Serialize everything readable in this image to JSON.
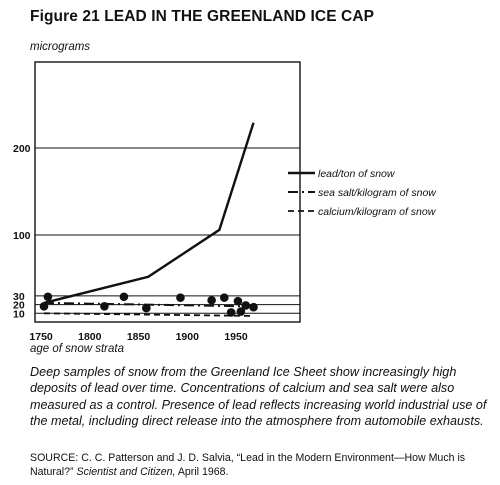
{
  "figure": {
    "title": "Figure 21 LEAD IN THE GREENLAND ICE CAP",
    "caption": "Deep samples of snow from the Greenland Ice Sheet show increasingly high deposits of lead over time. Concentrations of calcium and sea salt were also measured as a control. Presence of lead reflects increasing world industrial use of the metal, including direct release into the atmosphere from automobile exhausts.",
    "source_prefix": "SOURCE: C. C. Patterson and J. D. Salvia, “Lead in the Modern Environment—How Much is Natural?”",
    "source_journal": "Scientist and Citizen,",
    "source_suffix": "April 1968."
  },
  "chart_data": {
    "type": "line",
    "title": "",
    "xlabel": "age of snow strata",
    "ylabel": "micrograms",
    "xlim": [
      1735,
      1980
    ],
    "ylim": [
      0,
      275
    ],
    "x_ticks": [
      1750,
      1800,
      1850,
      1900,
      1950
    ],
    "y_ticks": [
      10,
      20,
      30,
      100,
      200
    ],
    "grid": true,
    "legend_position": "right",
    "series": [
      {
        "name": "lead/ton of snow",
        "style": "solid",
        "x": [
          1753,
          1860,
          1933,
          1968
        ],
        "y": [
          22,
          52,
          106,
          229
        ]
      },
      {
        "name": "sea salt/kilogram of snow",
        "style": "dash-dot",
        "x": [
          1753,
          1960
        ],
        "y": [
          22,
          18
        ]
      },
      {
        "name": "calcium/kilogram of snow",
        "style": "dashed",
        "x": [
          1753,
          1965
        ],
        "y": [
          10,
          7
        ]
      }
    ],
    "sample_points": {
      "x": [
        1753,
        1757,
        1815,
        1835,
        1858,
        1893,
        1925,
        1938,
        1945,
        1952,
        1955,
        1960,
        1968
      ],
      "y": [
        18,
        29,
        18,
        29,
        16,
        28,
        25,
        28,
        11,
        24,
        12,
        19,
        17
      ]
    }
  }
}
